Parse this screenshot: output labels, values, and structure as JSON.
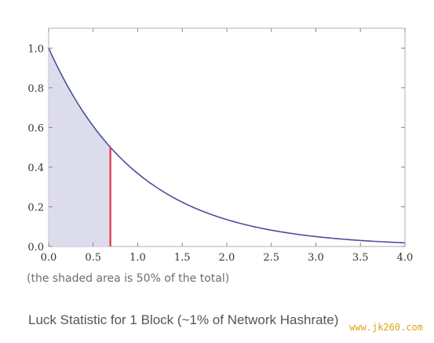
{
  "chart_data": {
    "type": "area",
    "function": "exp(-x)",
    "xlim": [
      0.0,
      4.0
    ],
    "ylim": [
      0.0,
      1.1
    ],
    "x_ticks": [
      "0.0",
      "0.5",
      "1.0",
      "1.5",
      "2.0",
      "2.5",
      "3.0",
      "3.5",
      "4.0"
    ],
    "y_ticks": [
      "0.0",
      "0.2",
      "0.4",
      "0.6",
      "0.8",
      "1.0"
    ],
    "shaded_region": {
      "from": 0.0,
      "to": 0.693
    },
    "marker": {
      "x": 0.693,
      "y": 0.5
    },
    "series": [
      {
        "x": [
          0.0,
          0.25,
          0.5,
          0.693,
          1.0,
          1.5,
          2.0,
          2.5,
          3.0,
          3.5,
          4.0
        ],
        "y": [
          1.0,
          0.779,
          0.607,
          0.5,
          0.368,
          0.223,
          0.135,
          0.082,
          0.05,
          0.03,
          0.018
        ]
      }
    ],
    "xlabel": "",
    "ylabel": "",
    "colors": {
      "curve": "#4b4f9a",
      "shade": "#dcdcec",
      "marker": "#e0344a",
      "frame": "#b0b0b0"
    }
  },
  "note": "(the shaded area is 50% of the total)",
  "caption": "Luck Statistic for 1 Block (~1% of Network Hashrate)",
  "watermark": "www.jk260.com"
}
